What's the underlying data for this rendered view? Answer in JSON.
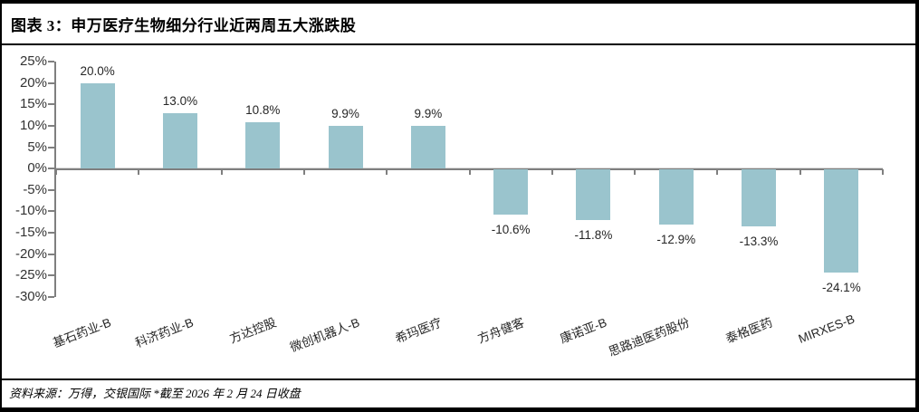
{
  "header": {
    "title": "图表 3：申万医疗生物细分行业近两周五大涨跌股"
  },
  "footer": {
    "source": "资料来源：万得，交银国际  *截至 2026 年 2 月 24 日收盘"
  },
  "colors": {
    "bar": "#9ac4cd",
    "axis": "#7f7f7f",
    "text": "#262626"
  },
  "chart_data": {
    "type": "bar",
    "title": "图表 3：申万医疗生物细分行业近两周五大涨跌股",
    "categories": [
      "基石药业-B",
      "科济药业-B",
      "方达控股",
      "微创机器人-B",
      "希玛医疗",
      "方舟健客",
      "康诺亚-B",
      "思路迪医药股份",
      "泰格医药",
      "MIRXES-B"
    ],
    "values": [
      20.0,
      13.0,
      10.8,
      9.9,
      9.9,
      -10.6,
      -11.8,
      -12.9,
      -13.3,
      -24.1
    ],
    "value_labels": [
      "20.0%",
      "13.0%",
      "10.8%",
      "9.9%",
      "9.9%",
      "-10.6%",
      "-11.8%",
      "-12.9%",
      "-13.3%",
      "-24.1%"
    ],
    "xlabel": "",
    "ylabel": "",
    "ylim": [
      -30,
      25
    ],
    "y_ticks": [
      25,
      20,
      15,
      10,
      5,
      0,
      -5,
      -10,
      -15,
      -20,
      -25,
      -30
    ],
    "y_tick_labels": [
      "25%",
      "20%",
      "15%",
      "10%",
      "5%",
      "0%",
      "-5%",
      "-10%",
      "-15%",
      "-20%",
      "-25%",
      "-30%"
    ],
    "grid": false,
    "legend": "none",
    "bar_color": "#9ac4cd"
  }
}
